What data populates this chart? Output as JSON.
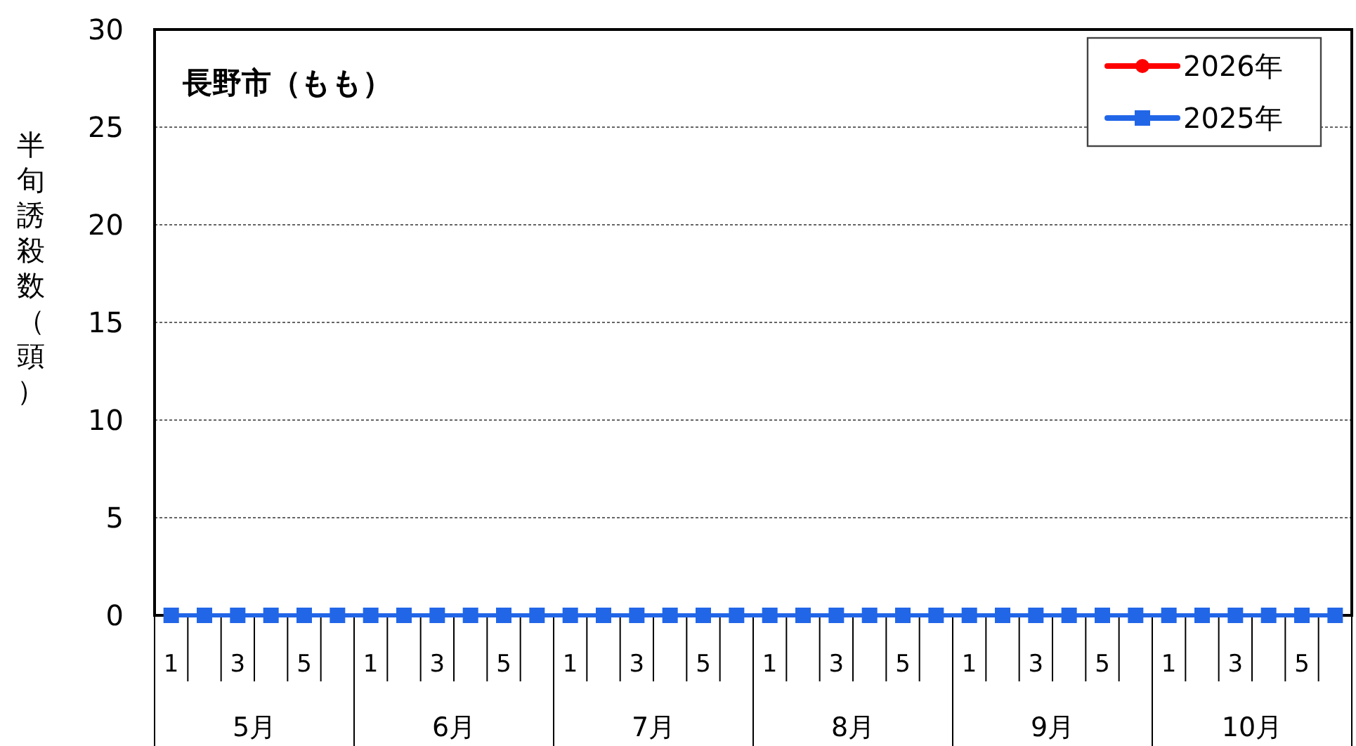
{
  "chart_data": {
    "type": "line",
    "title": "長野市（もも）",
    "ylabel": "半旬誘殺数（頭）",
    "categories": [
      "1",
      null,
      "3",
      null,
      "5",
      null,
      "1",
      null,
      "3",
      null,
      "5",
      null,
      "1",
      null,
      "3",
      null,
      "5",
      null,
      "1",
      null,
      "3",
      null,
      "5",
      null,
      "1",
      null,
      "3",
      null,
      "5",
      null,
      "1",
      null,
      "3",
      null,
      "5",
      null
    ],
    "annotations": [
      "5月",
      "6月",
      "7月",
      "8月",
      "9月",
      "10月"
    ],
    "series": [
      {
        "name": "2026年",
        "color": "#ff0000",
        "marker": "circle",
        "values": [
          null,
          null,
          null,
          null,
          null,
          null,
          null,
          null,
          null,
          null,
          null,
          null,
          null,
          null,
          null,
          null,
          null,
          null,
          null,
          null,
          null,
          null,
          null,
          null,
          null,
          null,
          null,
          null,
          null,
          null,
          null,
          null,
          null,
          null,
          null,
          null
        ]
      },
      {
        "name": "2025年",
        "color": "#2266e8",
        "marker": "square",
        "values": [
          0,
          0,
          0,
          0,
          0,
          0,
          0,
          0,
          0,
          0,
          0,
          0,
          0,
          0,
          0,
          0,
          0,
          0,
          0,
          0,
          0,
          0,
          0,
          0,
          0,
          0,
          0,
          0,
          0,
          0,
          0,
          0,
          0,
          0,
          0,
          0
        ]
      }
    ],
    "ylim": [
      0,
      30
    ],
    "yticks": [
      0,
      5,
      10,
      15,
      20,
      25,
      30
    ],
    "grid": "y",
    "legend": "top right"
  }
}
